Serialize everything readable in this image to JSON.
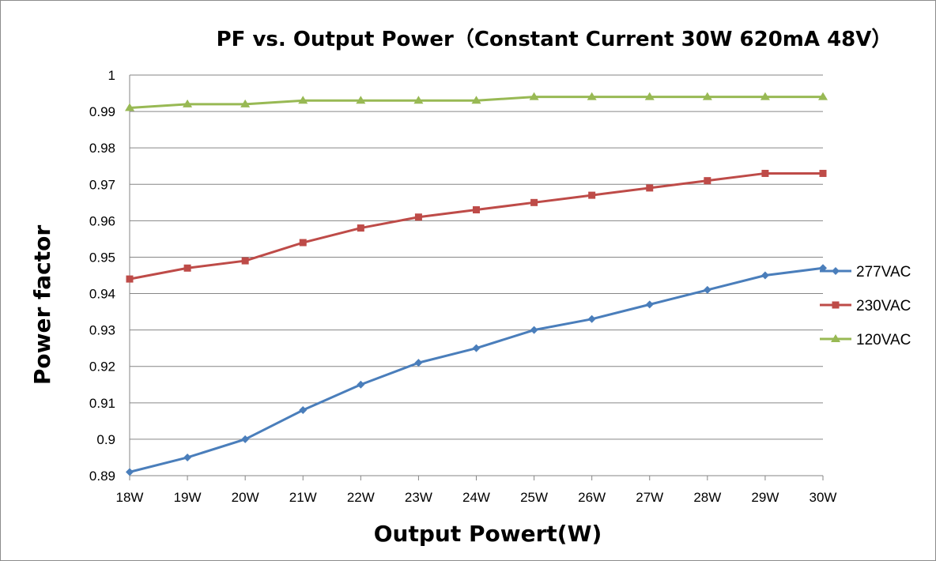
{
  "chart_data": {
    "type": "line",
    "title": "PF vs. Output Power（Constant Current 30W 620mA 48V）",
    "xlabel": "Output Powert(W)",
    "ylabel": "Power factor",
    "categories": [
      "18W",
      "19W",
      "20W",
      "21W",
      "22W",
      "23W",
      "24W",
      "25W",
      "26W",
      "27W",
      "28W",
      "29W",
      "30W"
    ],
    "ylim": [
      0.89,
      1
    ],
    "yticks": [
      "0.89",
      "0.9",
      "0.91",
      "0.92",
      "0.93",
      "0.94",
      "0.95",
      "0.96",
      "0.97",
      "0.98",
      "0.99",
      "1"
    ],
    "grid": true,
    "legend_position": "right",
    "series": [
      {
        "name": "277VAC",
        "color": "#4a7ebb",
        "marker": "diamond",
        "values": [
          0.891,
          0.895,
          0.9,
          0.908,
          0.915,
          0.921,
          0.925,
          0.93,
          0.933,
          0.937,
          0.941,
          0.945,
          0.947
        ]
      },
      {
        "name": "230VAC",
        "color": "#be4b48",
        "marker": "square",
        "values": [
          0.944,
          0.947,
          0.949,
          0.954,
          0.958,
          0.961,
          0.963,
          0.965,
          0.967,
          0.969,
          0.971,
          0.973,
          0.973
        ]
      },
      {
        "name": "120VAC",
        "color": "#98b954",
        "marker": "triangle",
        "values": [
          0.991,
          0.992,
          0.992,
          0.993,
          0.993,
          0.993,
          0.993,
          0.994,
          0.994,
          0.994,
          0.994,
          0.994,
          0.994
        ]
      }
    ]
  }
}
